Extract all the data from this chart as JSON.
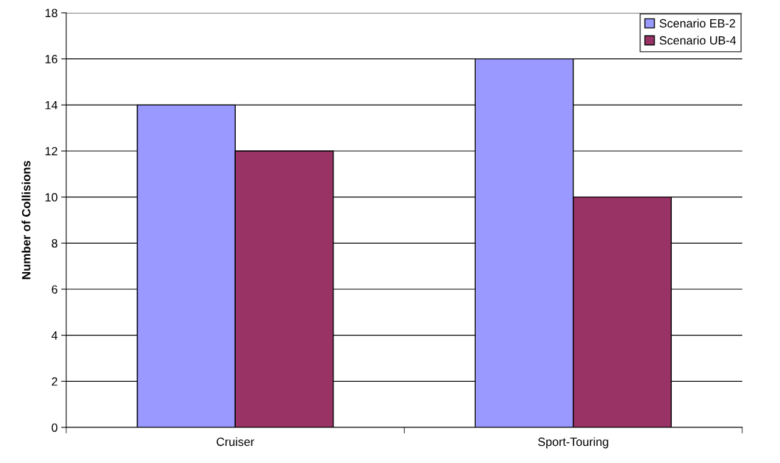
{
  "chart_data": {
    "type": "bar",
    "ylabel": "Number of Collisions",
    "categories": [
      "Cruiser",
      "Sport-Touring"
    ],
    "series": [
      {
        "name": "Scenario EB-2",
        "color": "#9999ff",
        "values": [
          14,
          16
        ]
      },
      {
        "name": "Scenario UB-4",
        "color": "#993366",
        "values": [
          12,
          10
        ]
      }
    ],
    "ylim": [
      0,
      18
    ],
    "yticks": [
      0,
      2,
      4,
      6,
      8,
      10,
      12,
      14,
      16,
      18
    ],
    "grid": "y",
    "legend": "top right"
  }
}
